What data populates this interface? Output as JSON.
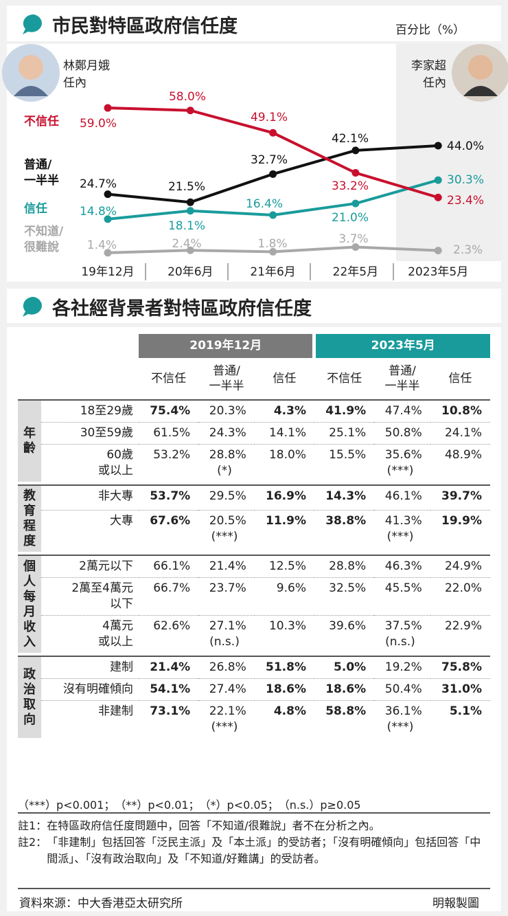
{
  "header": {
    "title": "市民對特區政府信任度",
    "unit": "百分比（%）"
  },
  "portraits": [
    "林鄭月娥\n任內",
    "李家超\n任內"
  ],
  "chart_data": {
    "type": "line",
    "categories": [
      "19年12月",
      "20年6月",
      "21年6月",
      "22年5月",
      "2023年5月"
    ],
    "series": [
      {
        "name": "不信任",
        "color": "#c8102e",
        "values": [
          59.0,
          58.0,
          49.1,
          33.2,
          23.4
        ],
        "value_labels": [
          "59.0%",
          "58.0%",
          "49.1%",
          "33.2%",
          "23.4%"
        ]
      },
      {
        "name": "普通/\n一半半",
        "color": "#111111",
        "values": [
          24.7,
          21.5,
          32.7,
          42.1,
          44.0
        ],
        "value_labels": [
          "24.7%",
          "21.5%",
          "32.7%",
          "42.1%",
          "44.0%"
        ]
      },
      {
        "name": "信任",
        "color": "#1a9b9b",
        "values": [
          14.8,
          18.1,
          16.4,
          21.0,
          30.3
        ],
        "value_labels": [
          "14.8%",
          "18.1%",
          "16.4%",
          "21.0%",
          "30.3%"
        ]
      },
      {
        "name": "不知道/\n很難說",
        "color": "#a8a8a8",
        "values": [
          1.4,
          2.4,
          1.8,
          3.7,
          2.3
        ],
        "value_labels": [
          "1.4%",
          "2.4%",
          "1.8%",
          "3.7%",
          "2.3%"
        ]
      }
    ]
  },
  "table": {
    "title": "各社經背景者對特區政府信任度",
    "periods": [
      "2019年12月",
      "2023年5月"
    ],
    "columns": [
      "不信任",
      "普通/\n一半半",
      "信任"
    ],
    "groups": [
      {
        "label": "年齡",
        "rows": [
          {
            "label": "18至29歲",
            "emphasis": true,
            "cells": [
              "75.4%",
              "20.3%",
              "4.3%",
              "41.9%",
              "47.4%",
              "10.8%"
            ]
          },
          {
            "label": "30至59歲",
            "emphasis": false,
            "cells": [
              "61.5%",
              "24.3%",
              "14.1%",
              "25.1%",
              "50.8%",
              "24.1%"
            ]
          },
          {
            "label": "60歲\n或以上",
            "emphasis": false,
            "cells": [
              "53.2%",
              "28.8%",
              "18.0%",
              "15.5%",
              "35.6%",
              "48.9%"
            ],
            "sig": [
              "(*)",
              "(***)"
            ]
          }
        ]
      },
      {
        "label": "教育程度",
        "rows": [
          {
            "label": "非大專",
            "emphasis": true,
            "cells": [
              "53.7%",
              "29.5%",
              "16.9%",
              "14.3%",
              "46.1%",
              "39.7%"
            ]
          },
          {
            "label": "大專",
            "emphasis": true,
            "cells": [
              "67.6%",
              "20.5%",
              "11.9%",
              "38.8%",
              "41.3%",
              "19.9%"
            ],
            "sig": [
              "(***)",
              "(***)"
            ]
          }
        ]
      },
      {
        "label": "個人每月收入",
        "rows": [
          {
            "label": "2萬元以下",
            "emphasis": false,
            "cells": [
              "66.1%",
              "21.4%",
              "12.5%",
              "28.8%",
              "46.3%",
              "24.9%"
            ]
          },
          {
            "label": "2萬至4萬元\n以下",
            "emphasis": false,
            "cells": [
              "66.7%",
              "23.7%",
              "9.6%",
              "32.5%",
              "45.5%",
              "22.0%"
            ]
          },
          {
            "label": "4萬元\n或以上",
            "emphasis": false,
            "cells": [
              "62.6%",
              "27.1%",
              "10.3%",
              "39.6%",
              "37.5%",
              "22.9%"
            ],
            "sig": [
              "(n.s.)",
              "(n.s.)"
            ]
          }
        ]
      },
      {
        "label": "政治取向",
        "rows": [
          {
            "label": "建制",
            "emphasis": true,
            "cells": [
              "21.4%",
              "26.8%",
              "51.8%",
              "5.0%",
              "19.2%",
              "75.8%"
            ]
          },
          {
            "label": "沒有明確傾向",
            "emphasis": true,
            "cells": [
              "54.1%",
              "27.4%",
              "18.6%",
              "18.6%",
              "50.4%",
              "31.0%"
            ]
          },
          {
            "label": "非建制",
            "emphasis": true,
            "cells": [
              "73.1%",
              "22.1%",
              "4.8%",
              "58.8%",
              "36.1%",
              "5.1%"
            ],
            "sig": [
              "(***)",
              "(***)"
            ]
          }
        ]
      }
    ]
  },
  "significance": "（***）p<0.001；　（**）p<0.01；　（*）p<0.05；　（n.s.）p≥0.05",
  "notes": [
    {
      "label": "註1：",
      "text": "在特區政府信任度問題中，回答「不知道/很難說」者不在分析之內。"
    },
    {
      "label": "註2：",
      "text": "「非建制」包括回答「泛民主派」及「本土派」的受訪者；「沒有明確傾向」包括回答「中間派」、「沒有政治取向」及「不知道/好難講」的受訪者。"
    }
  ],
  "footer": {
    "source": "資料來源：中大香港亞太研究所",
    "credit": "明報製圖"
  }
}
